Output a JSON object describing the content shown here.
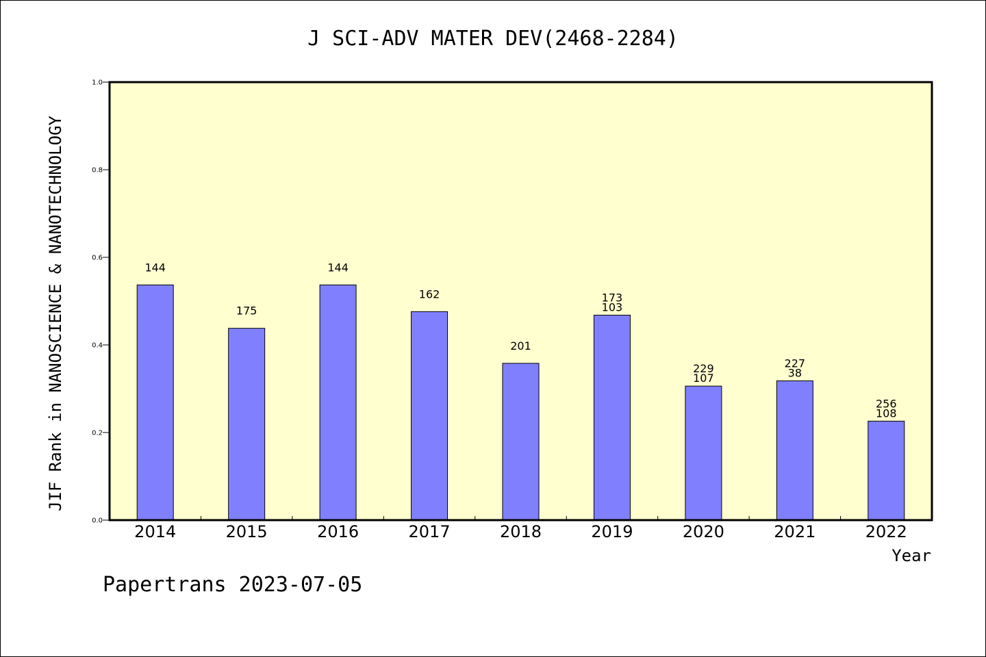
{
  "chart_data": {
    "type": "bar",
    "title": "J SCI-ADV MATER DEV(2468-2284)",
    "ylabel": "JIF Rank in NANOSCIENCE & NANOTECHNOLOGY",
    "xlabel": "Year",
    "ylim": [
      0,
      1.0
    ],
    "yticks": [
      "0.0",
      "0.2",
      "0.4",
      "0.6",
      "0.8",
      "1.0"
    ],
    "yticks_values": [
      0,
      0.2,
      0.4,
      0.6,
      0.8,
      1.0
    ],
    "categories": [
      "2014",
      "2015",
      "2016",
      "2017",
      "2018",
      "2019",
      "2020",
      "2021",
      "2022"
    ],
    "values": [
      0.537,
      0.438,
      0.537,
      0.476,
      0.358,
      0.468,
      0.306,
      0.318,
      0.226
    ],
    "labels_top": [
      "144",
      "175",
      "144",
      "162",
      "201",
      "173",
      "229",
      "227",
      "256"
    ],
    "labels_bottom": [
      "",
      "",
      "",
      "",
      "",
      "103",
      "107",
      "38",
      "108"
    ],
    "bar_color": "#8080ff",
    "plot_background": "#ffffd0",
    "grid": false
  },
  "footer": "Papertrans 2023-07-05"
}
